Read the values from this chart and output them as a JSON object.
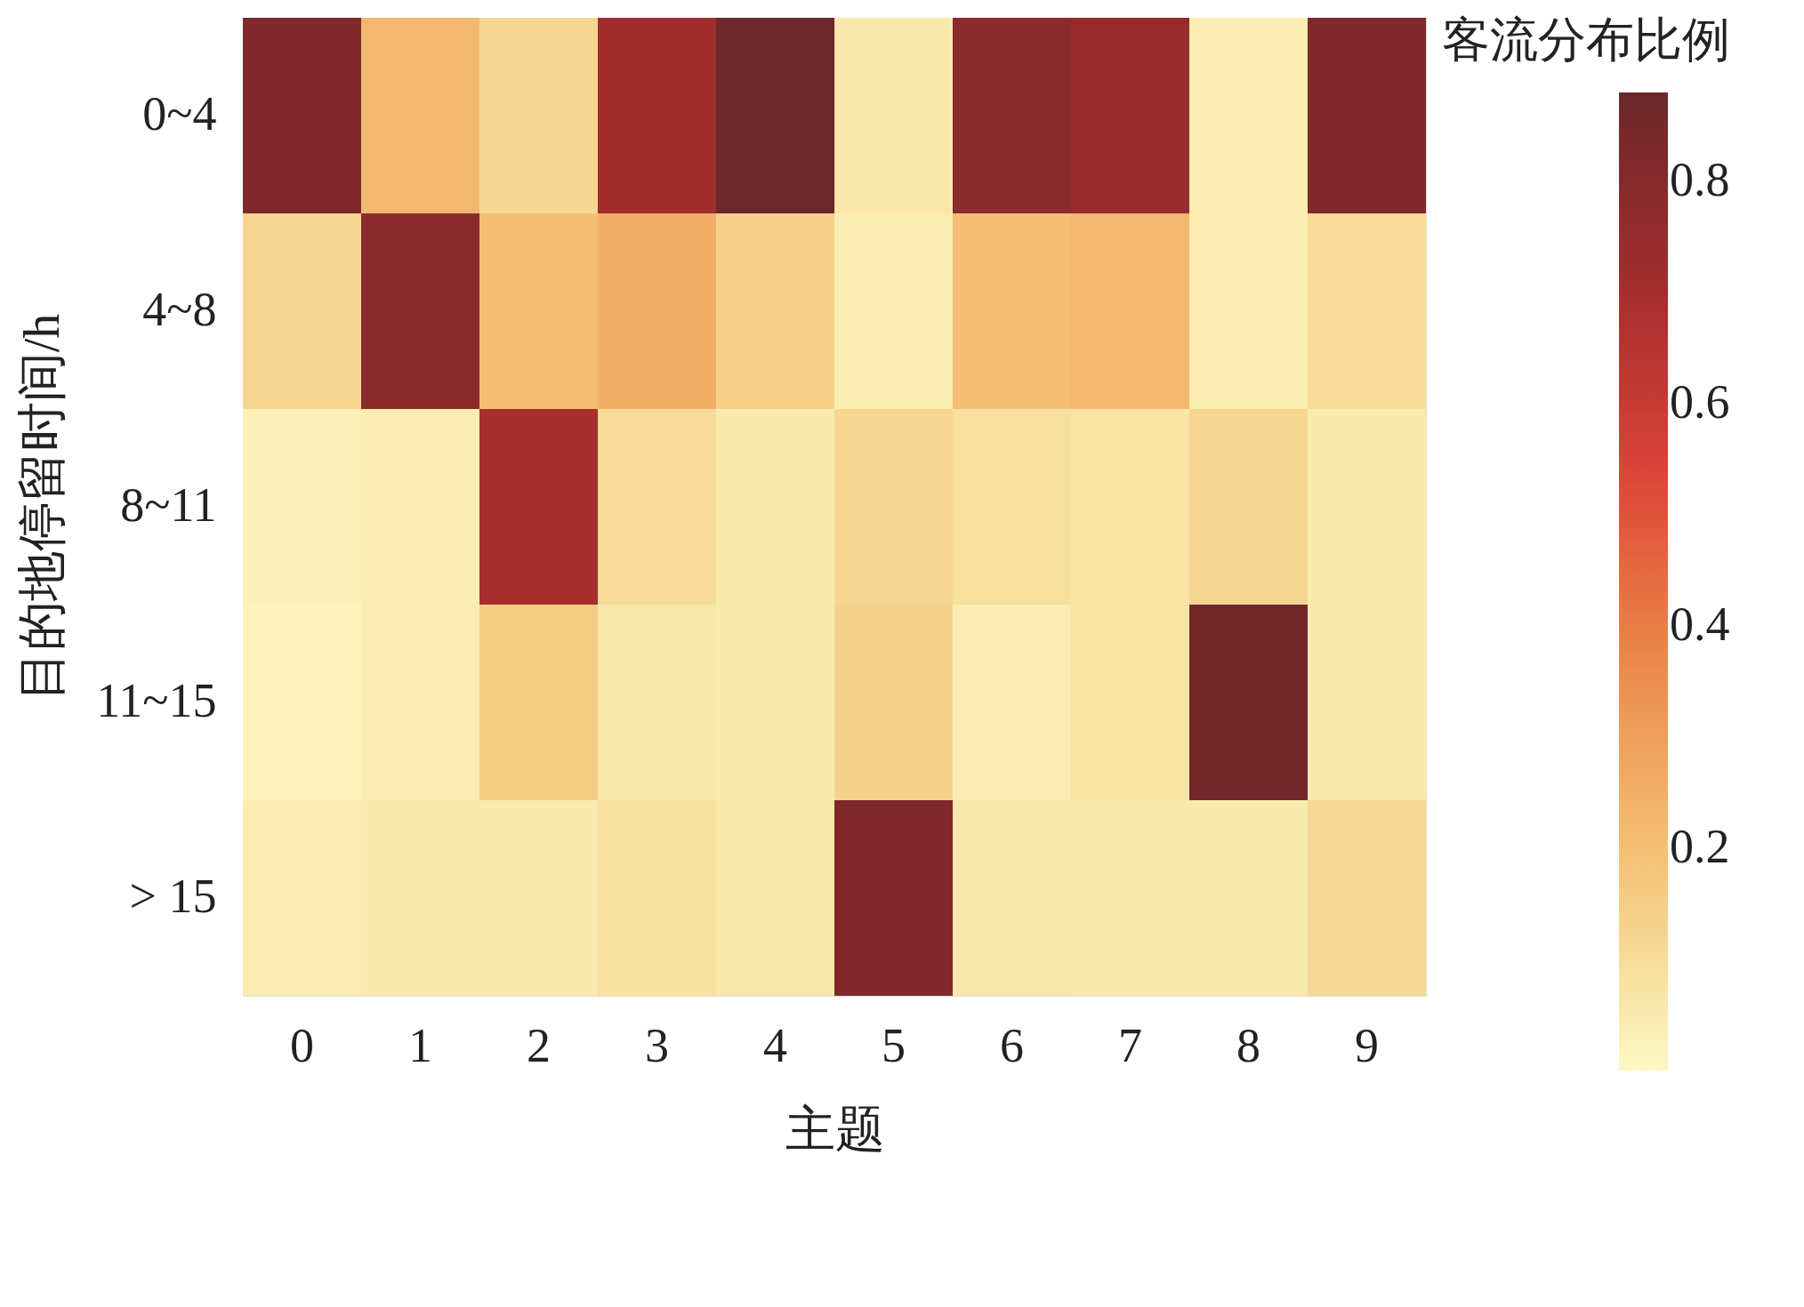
{
  "chart_data": {
    "type": "heatmap",
    "xlabel": "主题",
    "ylabel": "目的地停留时间/h",
    "clabel": "客流分布比例",
    "categories": [
      "0",
      "1",
      "2",
      "3",
      "4",
      "5",
      "6",
      "7",
      "8",
      "9"
    ],
    "y_categories": [
      "0~4",
      "4~8",
      "8~11",
      "11~15",
      "> 15"
    ],
    "cells": [
      [
        0.82,
        0.22,
        0.12,
        0.72,
        0.88,
        0.06,
        0.78,
        0.75,
        0.04,
        0.82
      ],
      [
        0.12,
        0.78,
        0.2,
        0.25,
        0.14,
        0.04,
        0.2,
        0.22,
        0.04,
        0.1
      ],
      [
        0.03,
        0.04,
        0.7,
        0.1,
        0.05,
        0.12,
        0.09,
        0.07,
        0.12,
        0.05
      ],
      [
        0.02,
        0.04,
        0.15,
        0.06,
        0.05,
        0.13,
        0.04,
        0.07,
        0.86,
        0.05
      ],
      [
        0.04,
        0.05,
        0.05,
        0.08,
        0.06,
        0.82,
        0.06,
        0.05,
        0.05,
        0.11
      ]
    ],
    "clim": [
      0.0,
      0.88
    ],
    "cticks": [
      0.2,
      0.4,
      0.6,
      0.8
    ],
    "colors": [
      "#fdf8c4",
      "#f6c57c",
      "#ec8e50",
      "#df4538",
      "#a52e2d",
      "#6b272a"
    ],
    "grid": false
  }
}
